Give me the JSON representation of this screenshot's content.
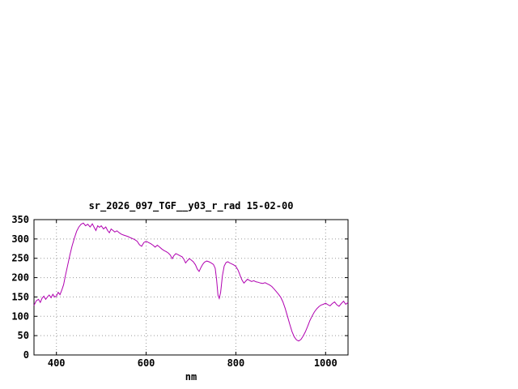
{
  "page": {
    "background": "#ffffff"
  },
  "chart_data": {
    "type": "line",
    "title": "sr_2026_097_TGF__y03_r_rad 15-02-00",
    "xlabel": "nm",
    "ylabel": "",
    "xlim": [
      350,
      1050
    ],
    "ylim": [
      0,
      350
    ],
    "x_ticks": [
      400,
      600,
      800,
      1000
    ],
    "y_ticks": [
      0,
      50,
      100,
      150,
      200,
      250,
      300,
      350
    ],
    "grid": true,
    "legend_position": "none",
    "line_color": "#b000b0",
    "border_color": "#000000",
    "grid_color": "#9a9a9a",
    "series": [
      {
        "points": [
          [
            350,
            128
          ],
          [
            355,
            140
          ],
          [
            360,
            144
          ],
          [
            364,
            136
          ],
          [
            368,
            147
          ],
          [
            372,
            152
          ],
          [
            376,
            144
          ],
          [
            380,
            150
          ],
          [
            384,
            155
          ],
          [
            388,
            148
          ],
          [
            392,
            157
          ],
          [
            396,
            150
          ],
          [
            400,
            152
          ],
          [
            404,
            162
          ],
          [
            408,
            156
          ],
          [
            412,
            168
          ],
          [
            416,
            182
          ],
          [
            420,
            205
          ],
          [
            425,
            232
          ],
          [
            430,
            258
          ],
          [
            435,
            282
          ],
          [
            440,
            302
          ],
          [
            445,
            320
          ],
          [
            450,
            331
          ],
          [
            455,
            338
          ],
          [
            460,
            341
          ],
          [
            465,
            334
          ],
          [
            470,
            338
          ],
          [
            475,
            331
          ],
          [
            480,
            339
          ],
          [
            484,
            330
          ],
          [
            488,
            322
          ],
          [
            492,
            334
          ],
          [
            496,
            330
          ],
          [
            500,
            334
          ],
          [
            505,
            326
          ],
          [
            510,
            331
          ],
          [
            514,
            322
          ],
          [
            518,
            316
          ],
          [
            522,
            326
          ],
          [
            526,
            322
          ],
          [
            530,
            318
          ],
          [
            535,
            321
          ],
          [
            540,
            316
          ],
          [
            545,
            312
          ],
          [
            550,
            310
          ],
          [
            555,
            308
          ],
          [
            560,
            306
          ],
          [
            565,
            303
          ],
          [
            570,
            301
          ],
          [
            575,
            298
          ],
          [
            580,
            294
          ],
          [
            585,
            285
          ],
          [
            590,
            281
          ],
          [
            595,
            291
          ],
          [
            600,
            294
          ],
          [
            605,
            291
          ],
          [
            610,
            288
          ],
          [
            615,
            284
          ],
          [
            620,
            279
          ],
          [
            625,
            284
          ],
          [
            630,
            279
          ],
          [
            635,
            274
          ],
          [
            640,
            270
          ],
          [
            645,
            267
          ],
          [
            650,
            263
          ],
          [
            654,
            258
          ],
          [
            658,
            249
          ],
          [
            662,
            257
          ],
          [
            666,
            262
          ],
          [
            670,
            260
          ],
          [
            675,
            257
          ],
          [
            680,
            254
          ],
          [
            684,
            248
          ],
          [
            688,
            238
          ],
          [
            692,
            244
          ],
          [
            696,
            249
          ],
          [
            700,
            246
          ],
          [
            705,
            241
          ],
          [
            710,
            233
          ],
          [
            714,
            222
          ],
          [
            718,
            216
          ],
          [
            722,
            226
          ],
          [
            726,
            234
          ],
          [
            730,
            240
          ],
          [
            735,
            243
          ],
          [
            740,
            241
          ],
          [
            745,
            238
          ],
          [
            750,
            234
          ],
          [
            754,
            224
          ],
          [
            757,
            195
          ],
          [
            760,
            155
          ],
          [
            763,
            146
          ],
          [
            766,
            162
          ],
          [
            770,
            205
          ],
          [
            774,
            230
          ],
          [
            778,
            239
          ],
          [
            782,
            241
          ],
          [
            786,
            238
          ],
          [
            790,
            236
          ],
          [
            795,
            233
          ],
          [
            800,
            229
          ],
          [
            805,
            219
          ],
          [
            810,
            204
          ],
          [
            814,
            193
          ],
          [
            818,
            186
          ],
          [
            822,
            191
          ],
          [
            826,
            196
          ],
          [
            830,
            193
          ],
          [
            835,
            190
          ],
          [
            840,
            192
          ],
          [
            845,
            189
          ],
          [
            850,
            188
          ],
          [
            855,
            186
          ],
          [
            860,
            185
          ],
          [
            865,
            187
          ],
          [
            870,
            184
          ],
          [
            875,
            181
          ],
          [
            880,
            177
          ],
          [
            885,
            171
          ],
          [
            890,
            164
          ],
          [
            895,
            157
          ],
          [
            900,
            149
          ],
          [
            905,
            137
          ],
          [
            910,
            120
          ],
          [
            915,
            100
          ],
          [
            920,
            80
          ],
          [
            925,
            61
          ],
          [
            930,
            47
          ],
          [
            935,
            39
          ],
          [
            940,
            36
          ],
          [
            945,
            40
          ],
          [
            950,
            49
          ],
          [
            955,
            60
          ],
          [
            960,
            74
          ],
          [
            965,
            89
          ],
          [
            970,
            101
          ],
          [
            975,
            111
          ],
          [
            980,
            119
          ],
          [
            985,
            125
          ],
          [
            990,
            129
          ],
          [
            995,
            131
          ],
          [
            1000,
            134
          ],
          [
            1005,
            130
          ],
          [
            1010,
            127
          ],
          [
            1015,
            133
          ],
          [
            1020,
            137
          ],
          [
            1025,
            130
          ],
          [
            1030,
            126
          ],
          [
            1035,
            133
          ],
          [
            1040,
            139
          ],
          [
            1045,
            131
          ],
          [
            1050,
            136
          ]
        ]
      }
    ]
  }
}
